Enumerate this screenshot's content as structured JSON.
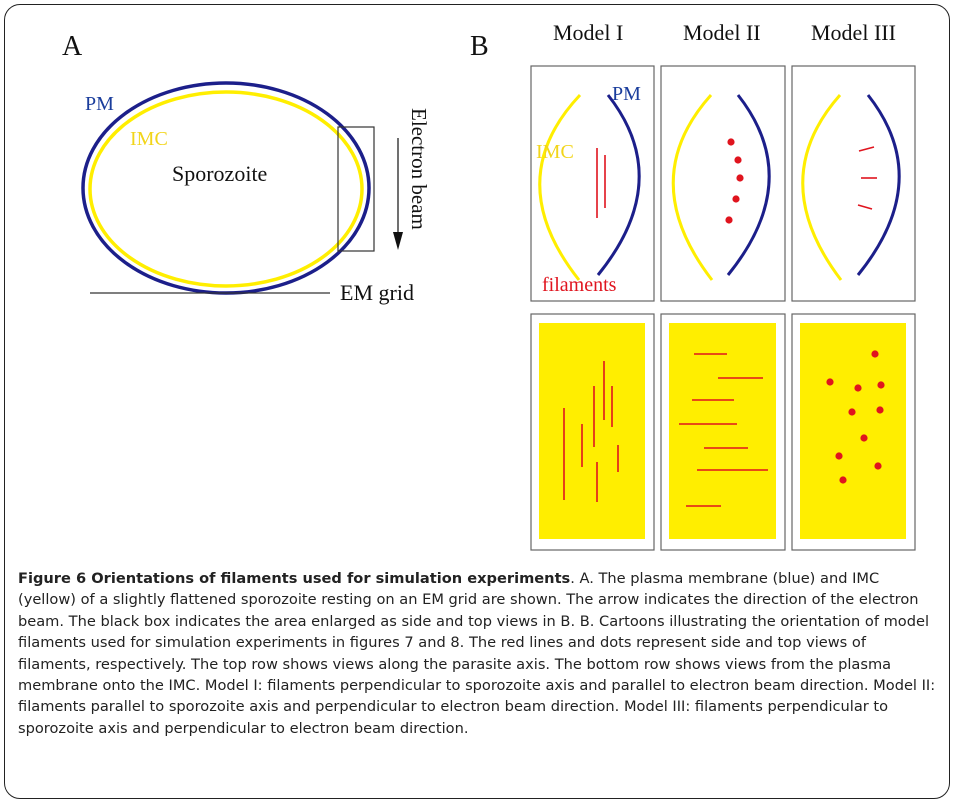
{
  "panel_a": {
    "label": "A",
    "pm_label": "PM",
    "imc_label": "IMC",
    "cell_label": "Sporozoite",
    "beam_label": "Electron beam",
    "grid_label": "EM grid"
  },
  "panel_b": {
    "label": "B",
    "models": [
      "Model I",
      "Model II",
      "Model III"
    ],
    "pm_label": "PM",
    "imc_label": "IMC",
    "filaments_label": "filaments"
  },
  "colors": {
    "pm": "#1c1f8a",
    "imc": "#ffee00",
    "filament": "#e0141e",
    "text_blue": "#1a3d9c",
    "text_yellow": "#f2d51a"
  },
  "caption": {
    "title": "Figure 6 Orientations of filaments used for simulation experiments",
    "body": ". A. The plasma membrane (blue) and IMC (yellow) of a slightly flattened sporozoite resting on an EM grid are shown. The arrow indicates the direction of the electron beam. The black box indicates the area enlarged as side and top views in B. B. Cartoons illustrating the orientation of model filaments used for simulation experiments in figures 7 and 8. The red lines and dots represent side and top views of filaments, respectively. The top row shows views along the parasite axis. The bottom row shows views from the plasma membrane onto the IMC. Model I: filaments perpendicular to sporozoite axis and parallel to electron beam direction. Model II: filaments parallel to sporozoite axis and perpendicular to electron beam direction. Model III: filaments perpendicular to sporozoite axis and perpendicular to electron beam direction."
  }
}
